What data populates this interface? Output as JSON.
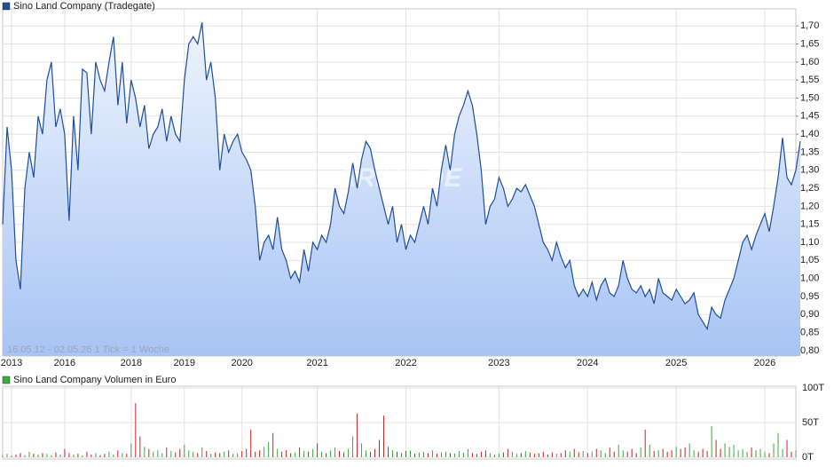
{
  "chart_data": [
    {
      "type": "area",
      "title": "Sino Land Company (Tradegate)",
      "subtitle": "16.05.12 - 02.05.26   1 Tick = 1 Woche",
      "watermark": "ARIVA.DE",
      "color": "#1f4e9c",
      "fill_top": "#eef4fd",
      "fill_bottom": "#a8c4f4",
      "grid": true,
      "values": [
        1.15,
        1.42,
        1.3,
        1.05,
        0.97,
        1.25,
        1.35,
        1.28,
        1.45,
        1.4,
        1.55,
        1.6,
        1.42,
        1.47,
        1.4,
        1.16,
        1.45,
        1.3,
        1.58,
        1.57,
        1.4,
        1.6,
        1.55,
        1.52,
        1.6,
        1.67,
        1.48,
        1.6,
        1.43,
        1.55,
        1.5,
        1.42,
        1.48,
        1.36,
        1.4,
        1.42,
        1.47,
        1.38,
        1.45,
        1.4,
        1.38,
        1.55,
        1.65,
        1.67,
        1.65,
        1.71,
        1.55,
        1.6,
        1.5,
        1.3,
        1.4,
        1.35,
        1.38,
        1.4,
        1.35,
        1.33,
        1.3,
        1.2,
        1.05,
        1.1,
        1.12,
        1.08,
        1.17,
        1.08,
        1.05,
        1.0,
        1.02,
        0.99,
        1.08,
        1.02,
        1.1,
        1.08,
        1.12,
        1.1,
        1.15,
        1.25,
        1.2,
        1.18,
        1.24,
        1.32,
        1.25,
        1.33,
        1.38,
        1.36,
        1.3,
        1.25,
        1.2,
        1.15,
        1.2,
        1.1,
        1.15,
        1.08,
        1.12,
        1.1,
        1.15,
        1.2,
        1.15,
        1.25,
        1.2,
        1.3,
        1.37,
        1.3,
        1.4,
        1.45,
        1.48,
        1.52,
        1.48,
        1.4,
        1.3,
        1.15,
        1.2,
        1.22,
        1.28,
        1.25,
        1.2,
        1.22,
        1.25,
        1.24,
        1.26,
        1.23,
        1.2,
        1.15,
        1.1,
        1.08,
        1.05,
        1.1,
        1.06,
        1.03,
        1.05,
        0.98,
        0.95,
        0.97,
        0.95,
        0.99,
        0.94,
        0.98,
        1.0,
        0.96,
        0.95,
        0.98,
        1.05,
        1.0,
        0.97,
        0.96,
        0.98,
        0.95,
        0.97,
        0.93,
        1.0,
        0.96,
        0.95,
        0.94,
        0.97,
        0.95,
        0.93,
        0.94,
        0.96,
        0.9,
        0.88,
        0.86,
        0.92,
        0.9,
        0.89,
        0.94,
        0.97,
        1.0,
        1.05,
        1.1,
        1.12,
        1.08,
        1.12,
        1.15,
        1.18,
        1.13,
        1.2,
        1.28,
        1.39,
        1.28,
        1.26,
        1.3,
        1.38
      ],
      "xlim": [
        0,
        179
      ],
      "xticks": [
        {
          "value": 2,
          "label": "2013"
        },
        {
          "value": 14,
          "label": "2016"
        },
        {
          "value": 29,
          "label": "2018"
        },
        {
          "value": 41,
          "label": "2019"
        },
        {
          "value": 54,
          "label": "2020"
        },
        {
          "value": 71,
          "label": "2021"
        },
        {
          "value": 91,
          "label": "2022"
        },
        {
          "value": 112,
          "label": "2023"
        },
        {
          "value": 132,
          "label": "2024"
        },
        {
          "value": 152,
          "label": "2025"
        },
        {
          "value": 172,
          "label": "2026"
        }
      ],
      "ylim": [
        0.785,
        1.735
      ],
      "yticks": [
        {
          "value": 0.8,
          "label": "0,80"
        },
        {
          "value": 0.85,
          "label": "0,85"
        },
        {
          "value": 0.9,
          "label": "0,90"
        },
        {
          "value": 0.95,
          "label": "0,95"
        },
        {
          "value": 1.0,
          "label": "1,00"
        },
        {
          "value": 1.05,
          "label": "1,05"
        },
        {
          "value": 1.1,
          "label": "1,10"
        },
        {
          "value": 1.15,
          "label": "1,15"
        },
        {
          "value": 1.2,
          "label": "1,20"
        },
        {
          "value": 1.25,
          "label": "1,25"
        },
        {
          "value": 1.3,
          "label": "1,30"
        },
        {
          "value": 1.35,
          "label": "1,35"
        },
        {
          "value": 1.4,
          "label": "1,40"
        },
        {
          "value": 1.45,
          "label": "1,45"
        },
        {
          "value": 1.5,
          "label": "1,50"
        },
        {
          "value": 1.55,
          "label": "1,55"
        },
        {
          "value": 1.6,
          "label": "1,60"
        },
        {
          "value": 1.65,
          "label": "1,65"
        },
        {
          "value": 1.7,
          "label": "1,70"
        }
      ]
    },
    {
      "type": "bar",
      "title": "Sino Land Company Volumen in Euro",
      "color": "#3caa3c",
      "up_color": "#3caa3c",
      "down_color": "#d02020",
      "grid": true,
      "values": [
        3,
        5,
        2,
        4,
        6,
        3,
        8,
        5,
        4,
        6,
        5,
        3,
        7,
        4,
        12,
        6,
        4,
        5,
        3,
        8,
        4,
        6,
        3,
        5,
        8,
        4,
        10,
        6,
        5,
        20,
        78,
        30,
        15,
        12,
        8,
        10,
        6,
        14,
        9,
        7,
        12,
        18,
        10,
        8,
        6,
        14,
        9,
        5,
        7,
        6,
        8,
        10,
        5,
        6,
        9,
        12,
        40,
        8,
        10,
        15,
        22,
        35,
        12,
        8,
        10,
        6,
        7,
        14,
        9,
        8,
        12,
        20,
        8,
        6,
        10,
        14,
        9,
        7,
        12,
        30,
        63,
        20,
        10,
        8,
        12,
        25,
        60,
        15,
        10,
        8,
        6,
        9,
        10,
        5,
        7,
        8,
        6,
        10,
        5,
        7,
        8,
        6,
        5,
        9,
        7,
        12,
        6,
        5,
        8,
        10,
        6,
        4,
        5,
        7,
        12,
        8,
        5,
        6,
        9,
        7,
        5,
        6,
        8,
        4,
        7,
        5,
        6,
        10,
        8,
        12,
        7,
        9,
        6,
        8,
        12,
        10,
        6,
        14,
        8,
        18,
        10,
        8,
        12,
        6,
        14,
        40,
        18,
        9,
        10,
        12,
        8,
        10,
        15,
        12,
        14,
        20,
        10,
        8,
        12,
        9,
        45,
        25,
        12,
        20,
        15,
        18,
        10,
        12,
        8,
        14,
        10,
        12,
        8,
        6,
        20,
        35,
        12,
        25,
        8,
        10
      ],
      "ylim": [
        0,
        100
      ],
      "yticks": [
        {
          "value": 0,
          "label": "0T"
        },
        {
          "value": 50,
          "label": "50T"
        },
        {
          "value": 100,
          "label": "100T"
        }
      ]
    }
  ]
}
